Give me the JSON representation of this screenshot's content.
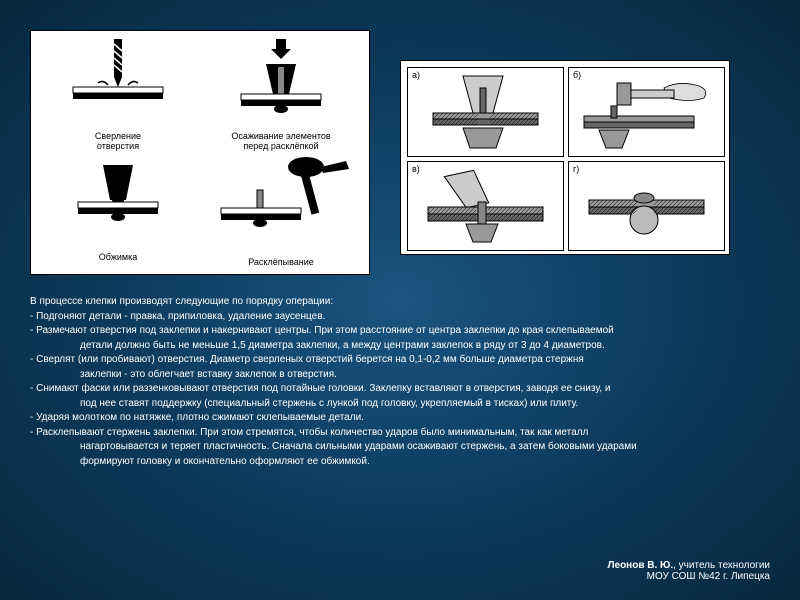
{
  "left_diagram": {
    "cells": [
      {
        "label": "Сверление\nотверстия"
      },
      {
        "label": "Осаживание элементов\nперед расклёпкой"
      },
      {
        "label": "Обжимка"
      },
      {
        "label": "Расклёпывание"
      }
    ]
  },
  "right_diagram": {
    "tags": [
      "а)",
      "б)",
      "в)",
      "г)"
    ]
  },
  "text": {
    "intro": "В процессе клепки производят следующие по порядку операции:",
    "items": [
      "- Подгоняют детали - правка, припиловка, удаление заусенцев.",
      "- Размечают отверстия под заклепки и накернивают центры. При этом расстояние от центра заклепки до края склепываемой",
      "детали должно быть не меньше 1,5 диаметра заклепки, а между центрами заклепок в ряду от 3 до 4 диаметров.",
      "- Сверлят (или пробивают) отверстия. Диаметр сверленых отверстий берется на 0,1-0,2 мм больше диаметра стержня",
      "заклепки - это облегчает вставку заклепок в отверстия.",
      "- Снимают фаски или раззенковывают отверстия под потайные головки. Заклепку вставляют в отверстия, заводя ее снизу, и",
      "под нее ставят поддержку (специальный стержень с лункой под головку, укрепляемый в тисках) или плиту.",
      "- Ударяя молотком по натяжке, плотно сжимают склепываемые детали.",
      "- Расклепывают стержень заклепки. При этом стремятся, чтобы количество ударов было минимальным, так как металл",
      "нагартовывается и теряет пластичность. Сначала сильными ударами осаживают стержень, а затем боковыми ударами",
      "формируют головку и окончательно оформляют ее обжимкой."
    ]
  },
  "footer": {
    "author": "Леонов В. Ю.",
    "role": ", учитель технологии",
    "school": "МОУ СОШ №42 г. Липецка"
  },
  "colors": {
    "bg_center": "#1a5580",
    "bg_edge": "#062840",
    "diagram_bg": "#ffffff",
    "text": "#ffffff",
    "diagram_text": "#000000"
  }
}
